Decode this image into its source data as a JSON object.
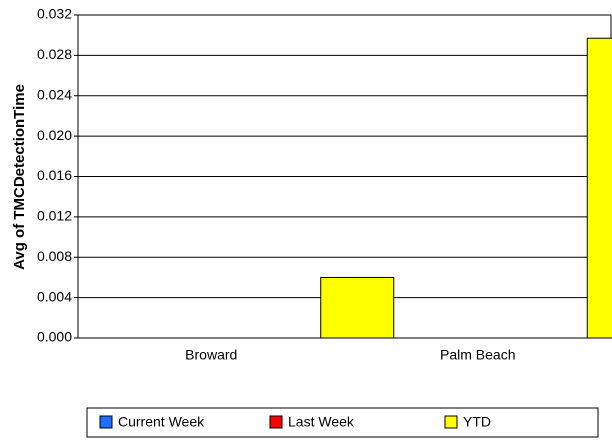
{
  "chart_data": {
    "type": "bar",
    "categories": [
      "Broward",
      "Palm Beach"
    ],
    "series": [
      {
        "name": "Current Week",
        "color": "#1e6fff",
        "values": [
          0,
          0
        ]
      },
      {
        "name": "Last Week",
        "color": "#ff0000",
        "values": [
          0,
          0
        ]
      },
      {
        "name": "YTD",
        "color": "#ffff00",
        "values": [
          0.006,
          0.0297
        ]
      }
    ],
    "y_label": "Avg of TMCDetectionTime",
    "ylim": [
      0,
      0.032
    ],
    "yticks": [
      {
        "value": 0,
        "label": "0.000"
      },
      {
        "value": 0.004,
        "label": "0.004"
      },
      {
        "value": 0.008,
        "label": "0.008"
      },
      {
        "value": 0.012,
        "label": "0.012"
      },
      {
        "value": 0.016,
        "label": "0.016"
      },
      {
        "value": 0.02,
        "label": "0.020"
      },
      {
        "value": 0.024,
        "label": "0.024"
      },
      {
        "value": 0.028,
        "label": "0.028"
      },
      {
        "value": 0.032,
        "label": "0.032"
      }
    ],
    "grid": true,
    "legend": "bottom"
  }
}
